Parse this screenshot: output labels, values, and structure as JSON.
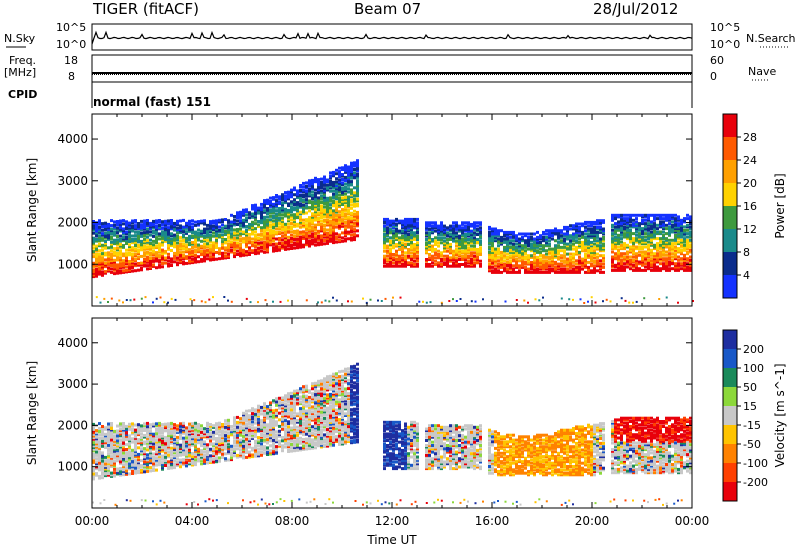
{
  "header": {
    "radar": "TIGER (fitACF)",
    "beam": "Beam 07",
    "date": "28/Jul/2012"
  },
  "param_panels": {
    "nsky_label": "N.Sky",
    "nsearch_label": "N.Search",
    "nsky_ticks": [
      "10^5",
      "10^0"
    ],
    "nsearch_ticks": [
      "10^5",
      "10^0"
    ],
    "freq_label": "Freq.",
    "freq_unit": "[MHz]",
    "freq_ticks": [
      "18",
      "8"
    ],
    "nave_label": "Nave",
    "nave_ticks": [
      "60",
      "0"
    ],
    "cpid_label": "CPID",
    "cpid_value": "normal (fast) 151"
  },
  "chart_data": [
    {
      "type": "heatmap",
      "panel": "power",
      "ylabel": "Slant Range [km]",
      "yticks": [
        1000,
        2000,
        3000,
        4000
      ],
      "ylim": [
        0,
        4600
      ],
      "xlim": [
        0,
        24
      ],
      "colorbar_label": "Power [dB]",
      "colorbar_ticks": [
        "28",
        "24",
        "20",
        "16",
        "12",
        "8",
        "4"
      ],
      "colorbar_colors": [
        "#e8000b",
        "#ff5a00",
        "#ffa000",
        "#ffd200",
        "#3e9a3e",
        "#1a8a8a",
        "#0a2c8c",
        "#1432ff"
      ],
      "series": [
        {
          "x": [
            0,
            1,
            2,
            3,
            4,
            5,
            6,
            7,
            8,
            9,
            10,
            10.5
          ],
          "lower": [
            700,
            750,
            800,
            800,
            850,
            900,
            950,
            1000,
            1100,
            1300,
            1500,
            1600
          ],
          "upper": [
            2100,
            1900,
            1900,
            1900,
            1950,
            2100,
            2700,
            3200,
            3400,
            3500,
            3400,
            3300
          ],
          "core": [
            1000,
            1050,
            1050,
            1000,
            1050,
            1100,
            1200,
            1300,
            1450,
            1600,
            1800,
            1900
          ]
        }
      ]
    },
    {
      "type": "heatmap",
      "panel": "velocity",
      "xlabel": "Time UT",
      "ylabel": "Slant Range [km]",
      "yticks": [
        1000,
        2000,
        3000,
        4000
      ],
      "ylim": [
        0,
        4600
      ],
      "xticks": [
        "00:00",
        "04:00",
        "08:00",
        "12:00",
        "16:00",
        "20:00",
        "00:00"
      ],
      "xlim": [
        0,
        24
      ],
      "colorbar_label": "Velocity [m s^-1]",
      "colorbar_ticks": [
        "200",
        "100",
        "50",
        "15",
        "-15",
        "-50",
        "-100",
        "-200"
      ],
      "colorbar_colors": [
        "#1e2ea0",
        "#1858c8",
        "#1a8a5a",
        "#8cd83a",
        "#c8c8c8",
        "#ffc400",
        "#ff8200",
        "#ff4000",
        "#e8000b"
      ]
    }
  ]
}
